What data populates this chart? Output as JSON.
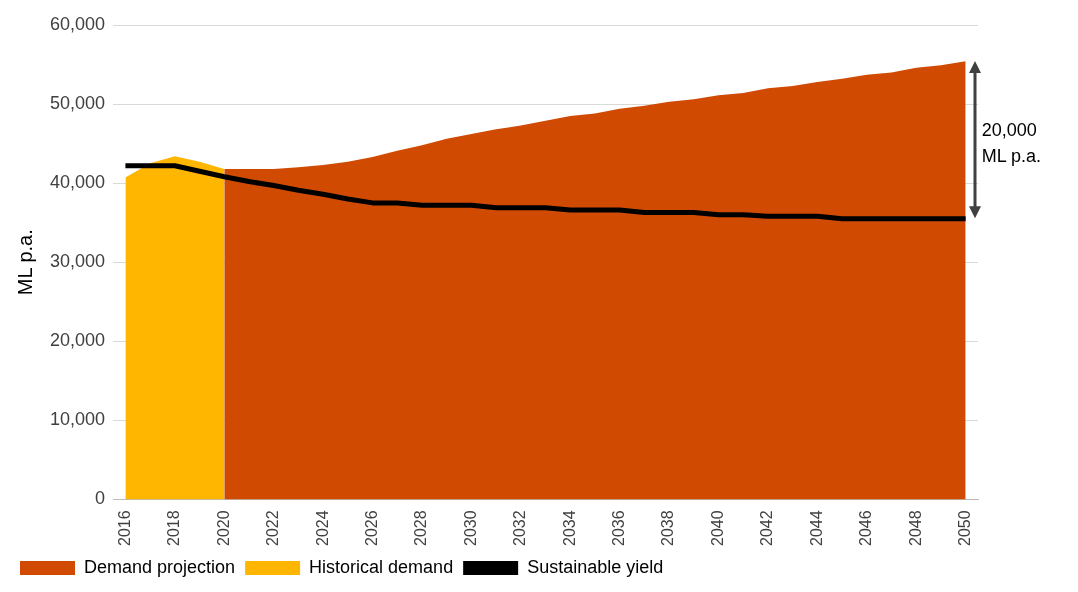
{
  "chart_data": {
    "type": "area",
    "ylabel": "ML p.a.",
    "categories": [
      "2016",
      null,
      "2018",
      null,
      "2020",
      null,
      "2022",
      null,
      "2024",
      null,
      "2026",
      null,
      "2028",
      null,
      "2030",
      null,
      "2032",
      null,
      "2034",
      null,
      "2036",
      null,
      "2038",
      null,
      "2040",
      null,
      "2042",
      null,
      "2044",
      null,
      "2046",
      null,
      "2048",
      null,
      "2050"
    ],
    "series": [
      {
        "name": "Demand projection",
        "color": "#d04a02",
        "values": [
          null,
          null,
          null,
          null,
          41800,
          41800,
          41800,
          42000,
          42300,
          42700,
          43300,
          44100,
          44800,
          45600,
          46200,
          46800,
          47300,
          47900,
          48500,
          48800,
          49400,
          49800,
          50300,
          50600,
          51100,
          51400,
          52000,
          52300,
          52800,
          53200,
          53700,
          54000,
          54600,
          54900,
          55400
        ]
      },
      {
        "name": "Historical demand",
        "color": "#ffb600",
        "values": [
          40700,
          42500,
          43400,
          42700,
          41800,
          null,
          null,
          null,
          null,
          null,
          null,
          null,
          null,
          null,
          null,
          null,
          null,
          null,
          null,
          null,
          null,
          null,
          null,
          null,
          null,
          null,
          null,
          null,
          null,
          null,
          null,
          null,
          null,
          null,
          null
        ]
      },
      {
        "name": "Sustainable yield",
        "type": "line",
        "color": "#000000",
        "values": [
          42200,
          42200,
          42200,
          41500,
          40800,
          40200,
          39700,
          39100,
          38600,
          38000,
          37500,
          37500,
          37200,
          37200,
          37200,
          36900,
          36900,
          36900,
          36600,
          36600,
          36600,
          36300,
          36300,
          36300,
          36000,
          36000,
          35800,
          35800,
          35800,
          35500,
          35500,
          35500,
          35500,
          35500,
          35500
        ]
      }
    ],
    "ylim": [
      0,
      60000
    ],
    "yticks": [
      0,
      {
        "value": 10000,
        "label": "10,000"
      },
      {
        "value": 20000,
        "label": "20,000"
      },
      {
        "value": 30000,
        "label": "30,000"
      },
      {
        "value": 40000,
        "label": "40,000"
      },
      {
        "value": 50000,
        "label": "50,000"
      },
      {
        "value": 60000,
        "label": "60,000"
      }
    ],
    "grid": "y",
    "legend": "bottom",
    "marker": "none",
    "line_style": "solid",
    "annotations": [
      {
        "text": "20,000 ML p.a.",
        "x": "2050",
        "y": 45000
      }
    ]
  }
}
